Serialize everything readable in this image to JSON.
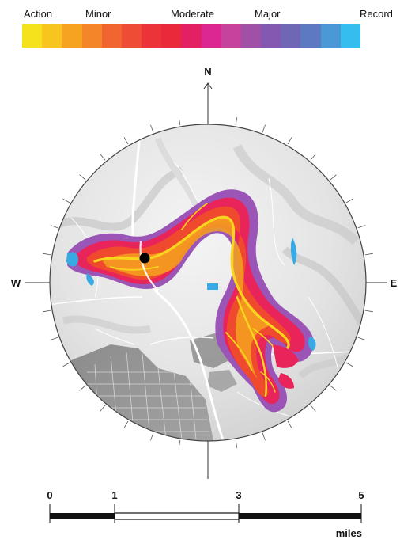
{
  "legend": {
    "labels": [
      {
        "text": "Action"
      },
      {
        "text": "Minor"
      },
      {
        "text": "Moderate"
      },
      {
        "text": "Major"
      },
      {
        "text": "Record"
      }
    ],
    "colors": [
      "#f5e21d",
      "#f8c41e",
      "#f6a322",
      "#f48529",
      "#f06530",
      "#ee4c35",
      "#ec3339",
      "#ea2a3a",
      "#e42065",
      "#dc2690",
      "#c6439c",
      "#a150a8",
      "#8458b0",
      "#6f66b6",
      "#5c79c2",
      "#4b98d6",
      "#35bdf0"
    ]
  },
  "compass": {
    "north": "N",
    "south": "",
    "east": "E",
    "west": "W"
  },
  "scale": {
    "ticks": [
      "0",
      "1",
      "3",
      "5"
    ],
    "tick_values": [
      0,
      1,
      3,
      5
    ],
    "unit": "miles"
  },
  "map": {
    "flood_colors": {
      "outer": "#9b55b6",
      "mid": "#e8245a",
      "inner": "#f04a2e",
      "core": "#f5a21e",
      "channel": "#f8d61e",
      "edge_blue": "#39a9e4"
    },
    "location_marker": "dot"
  }
}
